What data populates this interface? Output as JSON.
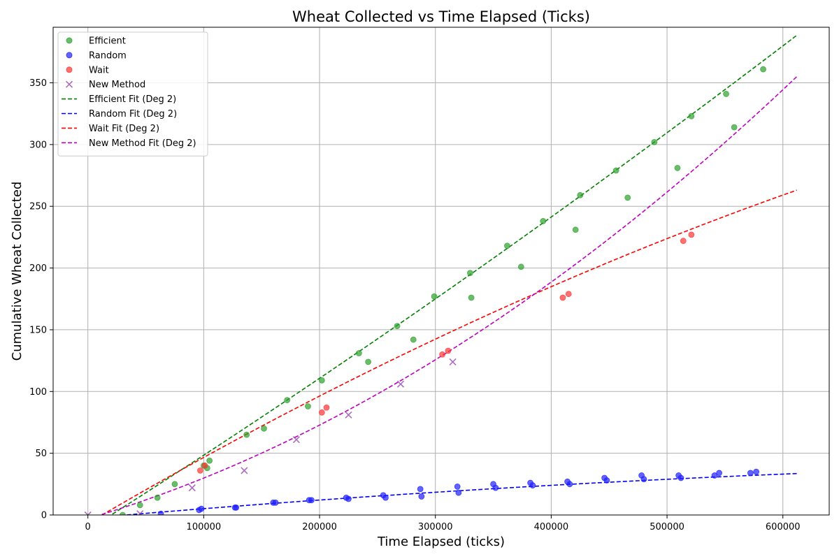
{
  "chart_data": {
    "type": "scatter",
    "title": "Wheat Collected vs Time Elapsed (Ticks)",
    "xlabel": "Time Elapsed (ticks)",
    "ylabel": "Cumulative Wheat Collected",
    "xlim": [
      -30000,
      640000
    ],
    "ylim": [
      0,
      395
    ],
    "x_ticks": [
      0,
      100000,
      200000,
      300000,
      400000,
      500000,
      600000
    ],
    "y_ticks": [
      0,
      50,
      100,
      150,
      200,
      250,
      300,
      350
    ],
    "grid": true,
    "legend_position": "top-left",
    "series": [
      {
        "name": "Efficient",
        "kind": "points",
        "marker": "circle",
        "color": "#2ca02c",
        "points": [
          [
            30000,
            0
          ],
          [
            45000,
            8
          ],
          [
            60000,
            14
          ],
          [
            75000,
            25
          ],
          [
            100000,
            40
          ],
          [
            103000,
            38
          ],
          [
            105000,
            44
          ],
          [
            137000,
            65
          ],
          [
            152000,
            70
          ],
          [
            172000,
            93
          ],
          [
            190000,
            88
          ],
          [
            202000,
            109
          ],
          [
            234000,
            131
          ],
          [
            242000,
            124
          ],
          [
            267000,
            153
          ],
          [
            281000,
            142
          ],
          [
            299000,
            177
          ],
          [
            330000,
            196
          ],
          [
            331000,
            176
          ],
          [
            362000,
            218
          ],
          [
            374000,
            201
          ],
          [
            393000,
            238
          ],
          [
            421000,
            231
          ],
          [
            425000,
            259
          ],
          [
            456000,
            279
          ],
          [
            466000,
            257
          ],
          [
            489000,
            302
          ],
          [
            509000,
            281
          ],
          [
            521000,
            323
          ],
          [
            551000,
            341
          ],
          [
            558000,
            314
          ],
          [
            583000,
            361
          ]
        ]
      },
      {
        "name": "Random",
        "kind": "points",
        "marker": "circle",
        "color": "#1f1fff",
        "points": [
          [
            63000,
            1
          ],
          [
            96000,
            4
          ],
          [
            98000,
            5
          ],
          [
            127000,
            6
          ],
          [
            128000,
            6
          ],
          [
            160000,
            10
          ],
          [
            162000,
            10
          ],
          [
            191000,
            12
          ],
          [
            193000,
            12
          ],
          [
            223000,
            14
          ],
          [
            225000,
            13
          ],
          [
            255000,
            16
          ],
          [
            257000,
            14
          ],
          [
            287000,
            21
          ],
          [
            288000,
            15
          ],
          [
            319000,
            23
          ],
          [
            320000,
            18
          ],
          [
            350000,
            25
          ],
          [
            352000,
            22
          ],
          [
            382000,
            26
          ],
          [
            384000,
            24
          ],
          [
            414000,
            27
          ],
          [
            416000,
            25
          ],
          [
            446000,
            30
          ],
          [
            448000,
            28
          ],
          [
            478000,
            32
          ],
          [
            480000,
            29
          ],
          [
            510000,
            32
          ],
          [
            512000,
            30
          ],
          [
            541000,
            32
          ],
          [
            545000,
            34
          ],
          [
            572000,
            34
          ],
          [
            577000,
            35
          ]
        ]
      },
      {
        "name": "Wait",
        "kind": "points",
        "marker": "circle",
        "color": "#ff3333",
        "points": [
          [
            97000,
            36
          ],
          [
            101000,
            40
          ],
          [
            202000,
            83
          ],
          [
            206000,
            87
          ],
          [
            306000,
            130
          ],
          [
            311000,
            133
          ],
          [
            410000,
            176
          ],
          [
            415000,
            179
          ],
          [
            514000,
            222
          ],
          [
            521000,
            227
          ]
        ]
      },
      {
        "name": "New Method",
        "kind": "points",
        "marker": "x",
        "color": "#8e3ea8",
        "points": [
          [
            0,
            0
          ],
          [
            45000,
            1
          ],
          [
            90000,
            22
          ],
          [
            135000,
            36
          ],
          [
            180000,
            61
          ],
          [
            225000,
            81
          ],
          [
            270000,
            106
          ],
          [
            315000,
            124
          ]
        ]
      },
      {
        "name": "Efficient Fit (Deg 2)",
        "kind": "fit",
        "color": "#008000",
        "coefficients": [
          1e-10,
          0.000593,
          -11.9
        ],
        "x_range": [
          12000,
          612000
        ]
      },
      {
        "name": "Random Fit (Deg 2)",
        "kind": "fit",
        "color": "#0000ff",
        "coefficients": [
          -3.5e-11,
          8.05e-05,
          -2.6
        ],
        "x_range": [
          12000,
          612000
        ]
      },
      {
        "name": "Wait Fit (Deg 2)",
        "kind": "fit",
        "color": "#ff0000",
        "coefficients": [
          -1.8e-10,
          0.000551,
          -6.7
        ],
        "x_range": [
          12000,
          612000
        ]
      },
      {
        "name": "New Method Fit (Deg 2)",
        "kind": "fit",
        "color": "#bf00bf",
        "coefficients": [
          5e-10,
          0.000279,
          -3.0
        ],
        "x_range": [
          12000,
          612000
        ]
      }
    ]
  }
}
